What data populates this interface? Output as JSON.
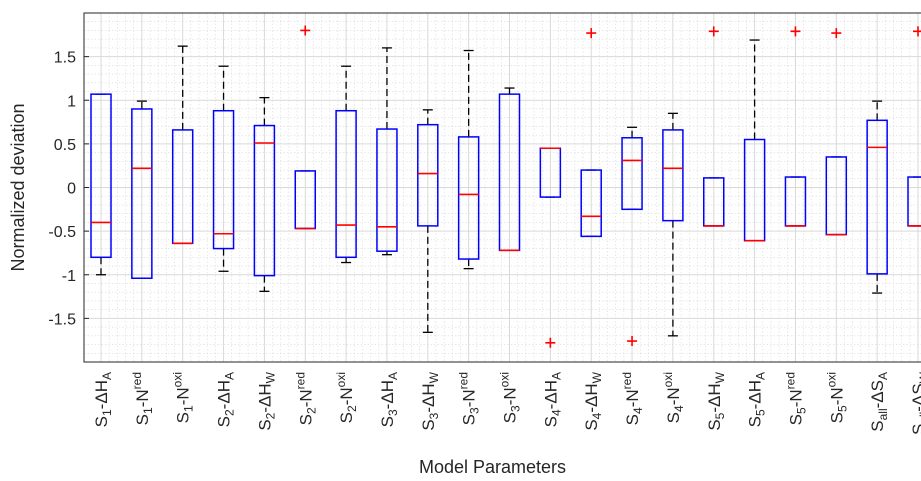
{
  "chart_data": {
    "type": "boxplot",
    "xlabel": "Model Parameters",
    "ylabel": "Normalized deviation",
    "ylim": [
      -2.0,
      2.0
    ],
    "yticks": [
      -1.5,
      -1,
      -0.5,
      0,
      0.5,
      1,
      1.5
    ],
    "ytick_labels": [
      "-1.5",
      "-1",
      "-0.5",
      "0",
      "0.5",
      "1",
      "1.5"
    ],
    "grid": true,
    "minor_grid": true,
    "colors": {
      "box": "#0000ff",
      "median": "#ff0000",
      "whisker": "#000000",
      "outlier": "#ff0000",
      "grid": "#d9d9d9"
    },
    "categories": [
      {
        "s": "S",
        "sub": "1",
        "mid": "-ΔH",
        "sub2": "A",
        "sup": ""
      },
      {
        "s": "S",
        "sub": "1",
        "mid": "-N",
        "sub2": "",
        "sup": "red"
      },
      {
        "s": "S",
        "sub": "1",
        "mid": "-N",
        "sub2": "",
        "sup": "oxi"
      },
      {
        "s": "S",
        "sub": "2",
        "mid": "-ΔH",
        "sub2": "A",
        "sup": ""
      },
      {
        "s": "S",
        "sub": "2",
        "mid": "-ΔH",
        "sub2": "W",
        "sup": ""
      },
      {
        "s": "S",
        "sub": "2",
        "mid": "-N",
        "sub2": "",
        "sup": "red"
      },
      {
        "s": "S",
        "sub": "2",
        "mid": "-N",
        "sub2": "",
        "sup": "oxi"
      },
      {
        "s": "S",
        "sub": "3",
        "mid": "-ΔH",
        "sub2": "A",
        "sup": ""
      },
      {
        "s": "S",
        "sub": "3",
        "mid": "-ΔH",
        "sub2": "W",
        "sup": ""
      },
      {
        "s": "S",
        "sub": "3",
        "mid": "-N",
        "sub2": "",
        "sup": "red"
      },
      {
        "s": "S",
        "sub": "3",
        "mid": "-N",
        "sub2": "",
        "sup": "oxi"
      },
      {
        "s": "S",
        "sub": "4",
        "mid": "-ΔH",
        "sub2": "A",
        "sup": ""
      },
      {
        "s": "S",
        "sub": "4",
        "mid": "-ΔH",
        "sub2": "W",
        "sup": ""
      },
      {
        "s": "S",
        "sub": "4",
        "mid": "-N",
        "sub2": "",
        "sup": "red"
      },
      {
        "s": "S",
        "sub": "4",
        "mid": "-N",
        "sub2": "",
        "sup": "oxi"
      },
      {
        "s": "S",
        "sub": "5",
        "mid": "-ΔH",
        "sub2": "W",
        "sup": ""
      },
      {
        "s": "S",
        "sub": "5",
        "mid": "-ΔH",
        "sub2": "A",
        "sup": ""
      },
      {
        "s": "S",
        "sub": "5",
        "mid": "-N",
        "sub2": "",
        "sup": "red"
      },
      {
        "s": "S",
        "sub": "5",
        "mid": "-N",
        "sub2": "",
        "sup": "oxi"
      },
      {
        "s": "S",
        "sub": "all",
        "mid": "-ΔS",
        "sub2": "A",
        "sup": ""
      },
      {
        "s": "S",
        "sub": "all",
        "mid": "-ΔS",
        "sub2": "W",
        "sup": ""
      }
    ],
    "boxes": [
      {
        "whisker_low": -1.0,
        "q1": -0.8,
        "median": -0.4,
        "q3": 1.07,
        "whisker_high": 1.07,
        "outliers": []
      },
      {
        "whisker_low": -1.04,
        "q1": -1.04,
        "median": 0.22,
        "q3": 0.9,
        "whisker_high": 0.99,
        "outliers": []
      },
      {
        "whisker_low": -0.64,
        "q1": -0.64,
        "median": -0.64,
        "q3": 0.66,
        "whisker_high": 1.62,
        "outliers": []
      },
      {
        "whisker_low": -0.96,
        "q1": -0.7,
        "median": -0.53,
        "q3": 0.88,
        "whisker_high": 1.39,
        "outliers": []
      },
      {
        "whisker_low": -1.19,
        "q1": -1.01,
        "median": 0.51,
        "q3": 0.71,
        "whisker_high": 1.03,
        "outliers": []
      },
      {
        "whisker_low": -0.47,
        "q1": -0.47,
        "median": -0.47,
        "q3": 0.19,
        "whisker_high": 0.19,
        "outliers": [
          1.8
        ]
      },
      {
        "whisker_low": -0.86,
        "q1": -0.8,
        "median": -0.43,
        "q3": 0.88,
        "whisker_high": 1.39,
        "outliers": []
      },
      {
        "whisker_low": -0.77,
        "q1": -0.73,
        "median": -0.45,
        "q3": 0.67,
        "whisker_high": 1.6,
        "outliers": []
      },
      {
        "whisker_low": -1.66,
        "q1": -0.44,
        "median": 0.16,
        "q3": 0.72,
        "whisker_high": 0.89,
        "outliers": []
      },
      {
        "whisker_low": -0.93,
        "q1": -0.82,
        "median": -0.08,
        "q3": 0.58,
        "whisker_high": 1.57,
        "outliers": []
      },
      {
        "whisker_low": -0.72,
        "q1": -0.72,
        "median": -0.72,
        "q3": 1.07,
        "whisker_high": 1.14,
        "outliers": []
      },
      {
        "whisker_low": -0.11,
        "q1": -0.11,
        "median": 0.45,
        "q3": 0.45,
        "whisker_high": 0.45,
        "outliers": [
          -1.78
        ]
      },
      {
        "whisker_low": -0.56,
        "q1": -0.56,
        "median": -0.33,
        "q3": 0.2,
        "whisker_high": 0.2,
        "outliers": [
          1.77
        ]
      },
      {
        "whisker_low": -0.25,
        "q1": -0.25,
        "median": 0.31,
        "q3": 0.57,
        "whisker_high": 0.69,
        "outliers": [
          -1.76
        ]
      },
      {
        "whisker_low": -1.7,
        "q1": -0.38,
        "median": 0.22,
        "q3": 0.66,
        "whisker_high": 0.85,
        "outliers": []
      },
      {
        "whisker_low": -0.44,
        "q1": -0.44,
        "median": -0.44,
        "q3": 0.11,
        "whisker_high": 0.11,
        "outliers": [
          1.79
        ]
      },
      {
        "whisker_low": -0.61,
        "q1": -0.61,
        "median": -0.61,
        "q3": 0.55,
        "whisker_high": 1.69,
        "outliers": []
      },
      {
        "whisker_low": -0.44,
        "q1": -0.44,
        "median": -0.44,
        "q3": 0.12,
        "whisker_high": 0.12,
        "outliers": [
          1.79
        ]
      },
      {
        "whisker_low": -0.54,
        "q1": -0.54,
        "median": -0.54,
        "q3": 0.35,
        "whisker_high": 0.35,
        "outliers": [
          1.77
        ]
      },
      {
        "whisker_low": -1.21,
        "q1": -0.99,
        "median": 0.46,
        "q3": 0.77,
        "whisker_high": 0.99,
        "outliers": []
      },
      {
        "whisker_low": -0.44,
        "q1": -0.44,
        "median": -0.44,
        "q3": 0.12,
        "whisker_high": 0.12,
        "outliers": [
          1.79
        ]
      }
    ]
  }
}
